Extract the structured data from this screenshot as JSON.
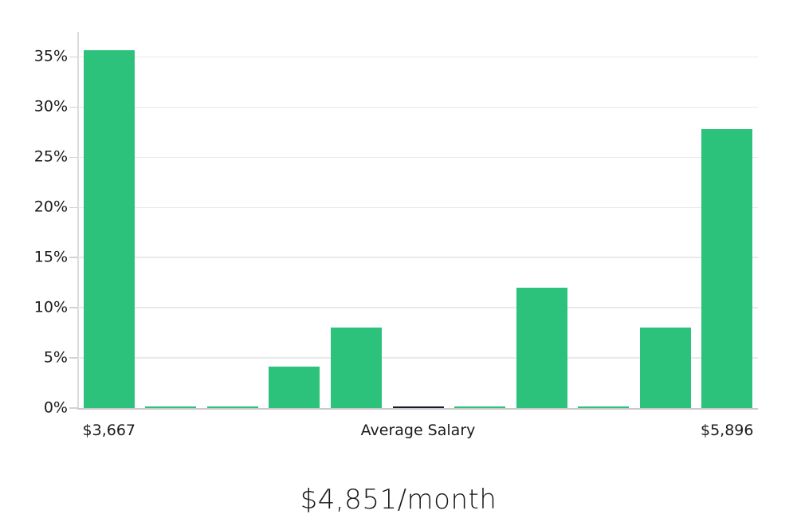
{
  "page": {
    "background": "#ffffff",
    "text_color": "#1b1b1b"
  },
  "chart_data": {
    "type": "bar",
    "title": "$4,851/month",
    "xlabel": "",
    "ylabel": "",
    "ylim": [
      0,
      37.5
    ],
    "y_ticks": [
      0,
      5,
      10,
      15,
      20,
      25,
      30,
      35
    ],
    "y_tick_suffix": "%",
    "grid": true,
    "legend": false,
    "bar_color": "#2dc27b",
    "highlight_color": "#1a1a2b",
    "grid_color": "#e9e9e9",
    "axis_color": "#c9c9c9",
    "bars": [
      {
        "value": 35.7,
        "highlight": false
      },
      {
        "value": 0.1,
        "highlight": false
      },
      {
        "value": 0.1,
        "highlight": false
      },
      {
        "value": 4.1,
        "highlight": false
      },
      {
        "value": 8.0,
        "highlight": false
      },
      {
        "value": 0.15,
        "highlight": true
      },
      {
        "value": 0.1,
        "highlight": false
      },
      {
        "value": 12.0,
        "highlight": false
      },
      {
        "value": 0.1,
        "highlight": false
      },
      {
        "value": 8.0,
        "highlight": false
      },
      {
        "value": 27.8,
        "highlight": false
      }
    ],
    "x_axis_labels": [
      {
        "text": "$3,667",
        "slot": 0
      },
      {
        "text": "Average Salary",
        "slot": 5
      },
      {
        "text": "$5,896",
        "slot": 10
      }
    ]
  }
}
